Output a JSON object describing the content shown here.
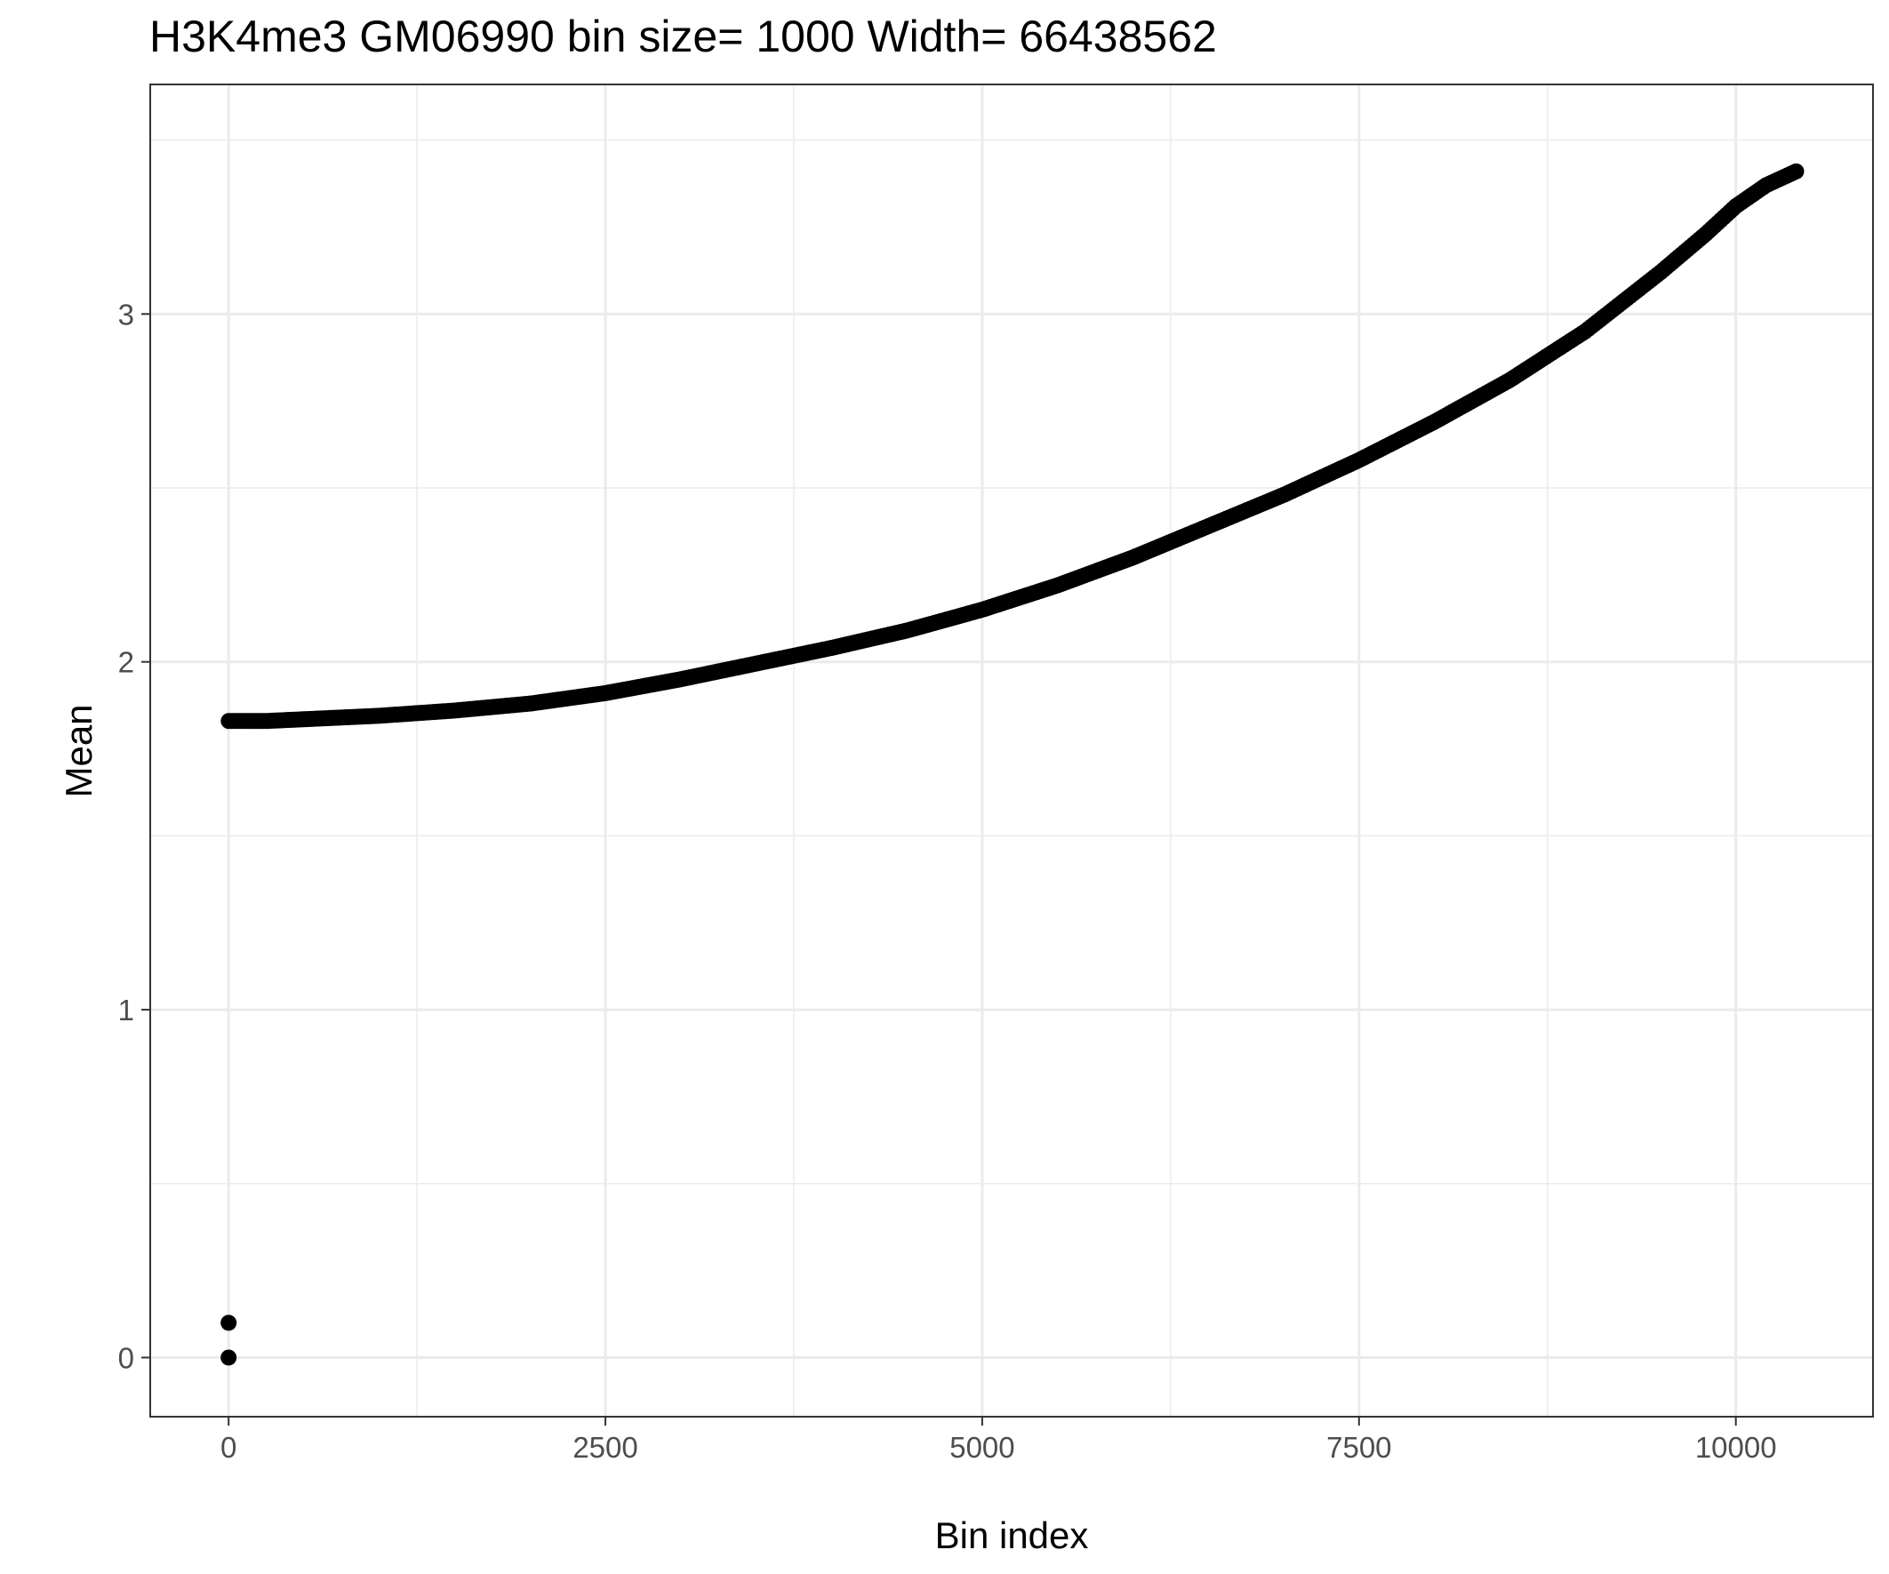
{
  "chart_data": {
    "type": "scatter",
    "title": "H3K4me3 GM06990  bin size=  1000  Width=  66438562",
    "xlabel": "Bin index",
    "ylabel": "Mean",
    "xlim": [
      -520,
      10910
    ],
    "ylim": [
      -0.17,
      3.66
    ],
    "x_ticks": [
      0,
      2500,
      5000,
      7500,
      10000
    ],
    "x_tick_labels": [
      "0",
      "2500",
      "5000",
      "7500",
      "10000"
    ],
    "y_ticks": [
      0,
      1,
      2,
      3
    ],
    "y_tick_labels": [
      "0",
      "1",
      "2",
      "3"
    ],
    "grid": true,
    "legend": "none",
    "point_color": "#000000",
    "series": [
      {
        "x": [
          0,
          0,
          1,
          250,
          500,
          750,
          1000,
          1500,
          2000,
          2500,
          3000,
          3500,
          4000,
          4500,
          5000,
          5500,
          6000,
          6500,
          7000,
          7500,
          8000,
          8500,
          9000,
          9500,
          9800,
          10000,
          10200,
          10400
        ],
        "y": [
          0.0,
          0.1,
          1.83,
          1.83,
          1.835,
          1.84,
          1.845,
          1.86,
          1.88,
          1.91,
          1.95,
          1.995,
          2.04,
          2.09,
          2.15,
          2.22,
          2.3,
          2.39,
          2.48,
          2.58,
          2.69,
          2.81,
          2.95,
          3.12,
          3.23,
          3.31,
          3.37,
          3.41
        ]
      }
    ]
  }
}
